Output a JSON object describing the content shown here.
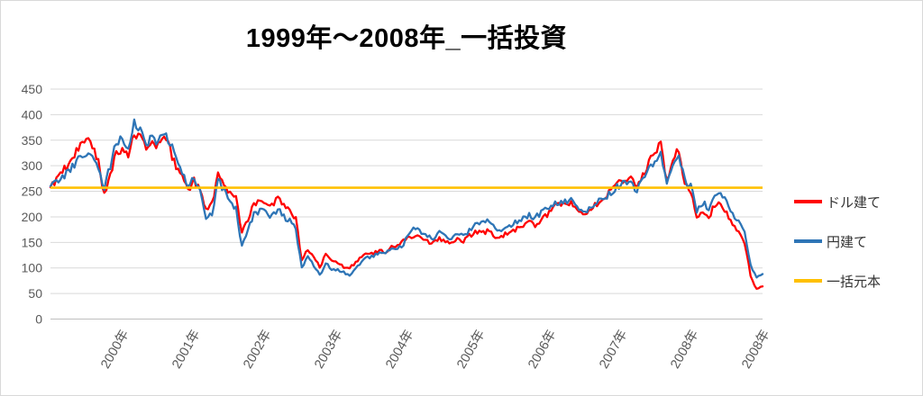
{
  "chart_data": {
    "type": "line",
    "title": "1999年～2008年_一括投資",
    "xlabel": "",
    "ylabel": "",
    "ylim": [
      0,
      450
    ],
    "y_ticks": [
      0,
      50,
      100,
      150,
      200,
      250,
      300,
      350,
      400,
      450
    ],
    "x_tick_labels": [
      "2000年",
      "2001年",
      "2002年",
      "2003年",
      "2004年",
      "2005年",
      "2006年",
      "2007年",
      "2008年",
      "2008年"
    ],
    "x_range_years": [
      1999,
      2009
    ],
    "grid": "horizontal",
    "legend_position": "right",
    "series": [
      {
        "name": "ドル建て",
        "color": "#ff0000",
        "start": "1999-01",
        "interval": "monthly",
        "monthly_values": [
          258,
          272,
          290,
          300,
          320,
          340,
          352,
          335,
          310,
          242,
          285,
          325,
          335,
          320,
          358,
          365,
          330,
          345,
          338,
          356,
          330,
          300,
          275,
          250,
          270,
          250,
          213,
          225,
          286,
          265,
          245,
          235,
          172,
          195,
          225,
          237,
          230,
          222,
          237,
          220,
          210,
          195,
          116,
          135,
          120,
          103,
          125,
          112,
          110,
          102,
          99,
          112,
          122,
          130,
          128,
          135,
          132,
          140,
          145,
          152,
          160,
          165,
          158,
          152,
          148,
          158,
          153,
          148,
          155,
          152,
          162,
          172,
          168,
          172,
          165,
          158,
          165,
          170,
          178,
          182,
          190,
          183,
          196,
          205,
          218,
          222,
          226,
          230,
          210,
          205,
          212,
          222,
          232,
          245,
          258,
          268,
          272,
          278,
          252,
          280,
          305,
          330,
          342,
          272,
          310,
          330,
          268,
          250,
          195,
          210,
          200,
          222,
          225,
          205,
          185,
          172,
          150,
          85,
          58,
          64
        ]
      },
      {
        "name": "円建て",
        "color": "#2e75b6",
        "start": "1999-01",
        "interval": "monthly",
        "monthly_values": [
          260,
          268,
          278,
          290,
          300,
          315,
          325,
          315,
          295,
          258,
          300,
          345,
          350,
          340,
          385,
          372,
          340,
          358,
          348,
          368,
          345,
          315,
          290,
          262,
          272,
          248,
          195,
          205,
          272,
          250,
          228,
          215,
          142,
          175,
          205,
          212,
          208,
          200,
          215,
          200,
          192,
          175,
          100,
          122,
          105,
          85,
          110,
          98,
          97,
          92,
          86,
          98,
          112,
          122,
          122,
          130,
          128,
          135,
          138,
          145,
          172,
          178,
          170,
          162,
          158,
          170,
          165,
          158,
          165,
          162,
          172,
          185,
          188,
          190,
          180,
          172,
          178,
          183,
          192,
          196,
          205,
          198,
          208,
          215,
          225,
          228,
          230,
          235,
          215,
          208,
          215,
          225,
          232,
          242,
          252,
          262,
          268,
          272,
          250,
          272,
          292,
          312,
          322,
          268,
          298,
          318,
          272,
          262,
          212,
          228,
          218,
          242,
          252,
          228,
          205,
          195,
          172,
          105,
          82,
          88
        ]
      },
      {
        "name": "一括元本",
        "color": "#ffc000",
        "constant_value": 257
      }
    ],
    "noise": {
      "amplitude": 7,
      "relative_to": 250,
      "subdivisions": 3,
      "seed": 9
    }
  },
  "colors": {
    "grid": "#d9d9d9",
    "axis_line": "#bfbfbf",
    "axis_labels": "#595959",
    "title": "#000000",
    "legend_text": "#333333",
    "border": "#d9d9d9"
  }
}
